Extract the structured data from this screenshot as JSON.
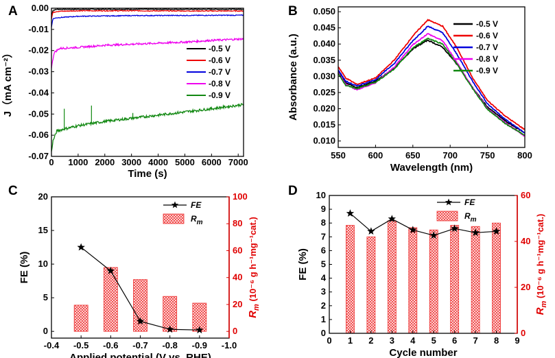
{
  "chart_data": [
    {
      "panel": "A",
      "type": "line",
      "xlabel": "Time (s)",
      "ylabel": "J（mA cm⁻²）",
      "xlim": [
        0,
        7200
      ],
      "ylim": [
        -0.07,
        0.0
      ],
      "xticks": [
        0,
        1000,
        2000,
        3000,
        4000,
        5000,
        6000,
        7000
      ],
      "xtick_labels": [
        "0",
        "1000",
        "2000",
        "3000",
        "4000",
        "5000",
        "6000",
        "7000"
      ],
      "yticks": [
        0.0,
        -0.01,
        -0.02,
        -0.03,
        -0.04,
        -0.05,
        -0.06,
        -0.07
      ],
      "ytick_labels": [
        "0.00",
        "-0.01",
        "-0.02",
        "-0.03",
        "-0.04",
        "-0.05",
        "-0.06",
        "-0.07"
      ],
      "legend_position": "right",
      "series": [
        {
          "name": "-0.5 V",
          "color": "#000000",
          "x": [
            0,
            50,
            200,
            1000,
            3000,
            5000,
            7200
          ],
          "y": [
            -0.004,
            -0.001,
            -0.0005,
            -0.0005,
            -0.0005,
            -0.0005,
            -0.0005
          ]
        },
        {
          "name": "-0.6 V",
          "color": "#ee0000",
          "x": [
            0,
            50,
            200,
            1000,
            3000,
            5000,
            7200
          ],
          "y": [
            -0.005,
            -0.002,
            -0.0015,
            -0.0012,
            -0.0012,
            -0.0013,
            -0.0013
          ]
        },
        {
          "name": "-0.7 V",
          "color": "#0000dd",
          "x": [
            0,
            50,
            200,
            1000,
            3000,
            5000,
            7200
          ],
          "y": [
            -0.009,
            -0.005,
            -0.0045,
            -0.0038,
            -0.0035,
            -0.0034,
            -0.0033
          ]
        },
        {
          "name": "-0.8 V",
          "color": "#ee00ee",
          "x": [
            0,
            100,
            300,
            1000,
            2000,
            3000,
            4000,
            5000,
            6000,
            7200
          ],
          "y": [
            -0.028,
            -0.021,
            -0.019,
            -0.0185,
            -0.0175,
            -0.017,
            -0.0165,
            -0.016,
            -0.0152,
            -0.0145
          ]
        },
        {
          "name": "-0.9 V",
          "color": "#118811",
          "x": [
            0,
            50,
            200,
            500,
            1000,
            2000,
            3000,
            4000,
            5000,
            6000,
            7200
          ],
          "y": [
            -0.068,
            -0.063,
            -0.058,
            -0.057,
            -0.0555,
            -0.0535,
            -0.052,
            -0.0505,
            -0.049,
            -0.0475,
            -0.0455
          ]
        }
      ]
    },
    {
      "panel": "B",
      "type": "line",
      "xlabel": "Wavelength (nm)",
      "ylabel": "Absorbance (a.u.)",
      "xlim": [
        550,
        800
      ],
      "ylim": [
        0.008,
        0.0515
      ],
      "xticks": [
        550,
        600,
        650,
        700,
        750,
        800
      ],
      "xtick_labels": [
        "550",
        "600",
        "650",
        "700",
        "750",
        "800"
      ],
      "yticks": [
        0.01,
        0.015,
        0.02,
        0.025,
        0.03,
        0.035,
        0.04,
        0.045,
        0.05
      ],
      "ytick_labels": [
        "0.010",
        "0.015",
        "0.020",
        "0.025",
        "0.030",
        "0.035",
        "0.040",
        "0.045",
        "0.050"
      ],
      "legend_position": "top-right",
      "series": [
        {
          "name": "-0.5 V",
          "color": "#000000",
          "x": [
            550,
            560,
            575,
            600,
            625,
            650,
            670,
            690,
            710,
            730,
            750,
            775,
            800
          ],
          "y": [
            0.0315,
            0.028,
            0.0265,
            0.0285,
            0.0325,
            0.0385,
            0.0412,
            0.039,
            0.0335,
            0.0265,
            0.0205,
            0.016,
            0.0125
          ]
        },
        {
          "name": "-0.6 V",
          "color": "#ee0000",
          "x": [
            550,
            560,
            575,
            600,
            625,
            650,
            670,
            690,
            710,
            730,
            750,
            775,
            800
          ],
          "y": [
            0.033,
            0.0295,
            0.0275,
            0.0295,
            0.035,
            0.0425,
            0.0475,
            0.0455,
            0.0385,
            0.0295,
            0.0225,
            0.0175,
            0.0135
          ]
        },
        {
          "name": "-0.7 V",
          "color": "#0000dd",
          "x": [
            550,
            560,
            575,
            600,
            625,
            650,
            670,
            690,
            710,
            730,
            750,
            775,
            800
          ],
          "y": [
            0.032,
            0.0285,
            0.027,
            0.029,
            0.034,
            0.041,
            0.0455,
            0.0435,
            0.0365,
            0.0285,
            0.0215,
            0.0165,
            0.0125
          ]
        },
        {
          "name": "-0.8 V",
          "color": "#ee00ee",
          "x": [
            550,
            560,
            575,
            600,
            625,
            650,
            670,
            690,
            710,
            730,
            750,
            775,
            800
          ],
          "y": [
            0.0312,
            0.0275,
            0.0258,
            0.028,
            0.0328,
            0.0398,
            0.0432,
            0.041,
            0.034,
            0.0265,
            0.02,
            0.0155,
            0.0115
          ]
        },
        {
          "name": "-0.9 V",
          "color": "#118811",
          "x": [
            550,
            560,
            575,
            600,
            625,
            650,
            670,
            690,
            710,
            730,
            750,
            775,
            800
          ],
          "y": [
            0.031,
            0.0272,
            0.0262,
            0.0282,
            0.0322,
            0.0388,
            0.0418,
            0.04,
            0.0335,
            0.0262,
            0.0198,
            0.0152,
            0.0118
          ]
        }
      ]
    },
    {
      "panel": "C",
      "type": "bar+line",
      "xlabel": "Applied potential (V vs. RHE)",
      "ylabel": "FE (%)",
      "ylabel_right_main": "R",
      "ylabel_right_sub": "m",
      "ylabel_right_units": "(10⁻⁶ g h⁻¹mg⁻¹cat.)",
      "xlim": [
        -0.4,
        -1.0
      ],
      "ylim": [
        -1,
        20
      ],
      "y2lim": [
        -5,
        100
      ],
      "xticks": [
        -0.4,
        -0.5,
        -0.6,
        -0.7,
        -0.8,
        -0.9,
        -1.0
      ],
      "xtick_labels": [
        "-0.4",
        "-0.5",
        "-0.6",
        "-0.7",
        "-0.8",
        "-0.9",
        "-1.0"
      ],
      "yticks": [
        0,
        5,
        10,
        15,
        20
      ],
      "ytick_labels": [
        "0",
        "5",
        "10",
        "15",
        "20"
      ],
      "y2ticks": [
        0,
        20,
        40,
        60,
        80,
        100
      ],
      "y2tick_labels": [
        "0",
        "20",
        "40",
        "60",
        "80",
        "100"
      ],
      "categories": [
        "-0.5",
        "-0.6",
        "-0.7",
        "-0.8",
        "-0.9"
      ],
      "x": [
        -0.5,
        -0.6,
        -0.7,
        -0.8,
        -0.9
      ],
      "series": [
        {
          "name": "FE",
          "axis": "left",
          "kind": "line+star",
          "values": [
            12.5,
            9.0,
            1.5,
            0.3,
            0.2
          ]
        },
        {
          "name": "Rm",
          "axis": "right",
          "kind": "bar",
          "values": [
            19.5,
            47.5,
            38.5,
            26,
            21
          ]
        }
      ],
      "legend_position": "top-right",
      "legend": {
        "fe": "FE",
        "rm_main": "R",
        "rm_sub": "m"
      }
    },
    {
      "panel": "D",
      "type": "bar+line",
      "xlabel": "Cycle number",
      "ylabel": "FE (%)",
      "ylabel_right_main": "R",
      "ylabel_right_sub": "m",
      "ylabel_right_units": "(10⁻⁶ g h⁻¹mg⁻¹cat.)",
      "xlim": [
        0,
        9
      ],
      "ylim": [
        0,
        10
      ],
      "y2lim": [
        0,
        60
      ],
      "xticks": [
        0,
        1,
        2,
        3,
        4,
        5,
        6,
        7,
        8,
        9
      ],
      "xtick_labels": [
        "0",
        "1",
        "2",
        "3",
        "4",
        "5",
        "6",
        "7",
        "8",
        "9"
      ],
      "yticks": [
        0,
        1,
        2,
        3,
        4,
        5,
        6,
        7,
        8,
        9,
        10
      ],
      "ytick_labels": [
        "0",
        "1",
        "2",
        "3",
        "4",
        "5",
        "6",
        "7",
        "8",
        "9",
        "10"
      ],
      "y2ticks": [
        0,
        20,
        40,
        60
      ],
      "y2tick_labels": [
        "0",
        "20",
        "40",
        "60"
      ],
      "categories": [
        "1",
        "2",
        "3",
        "4",
        "5",
        "6",
        "7",
        "8"
      ],
      "x": [
        1,
        2,
        3,
        4,
        5,
        6,
        7,
        8
      ],
      "series": [
        {
          "name": "FE",
          "axis": "left",
          "kind": "line+star",
          "values": [
            8.7,
            7.4,
            8.3,
            7.5,
            7.1,
            7.6,
            7.3,
            7.4
          ]
        },
        {
          "name": "Rm",
          "axis": "right",
          "kind": "bar",
          "values": [
            47,
            42,
            49,
            46,
            45,
            47,
            46.5,
            48
          ]
        }
      ],
      "legend_position": "top-right",
      "legend": {
        "fe": "FE",
        "rm_main": "R",
        "rm_sub": "m"
      }
    }
  ],
  "colors": {
    "red": "#e00000",
    "bar_hatch": "#ee3333"
  }
}
